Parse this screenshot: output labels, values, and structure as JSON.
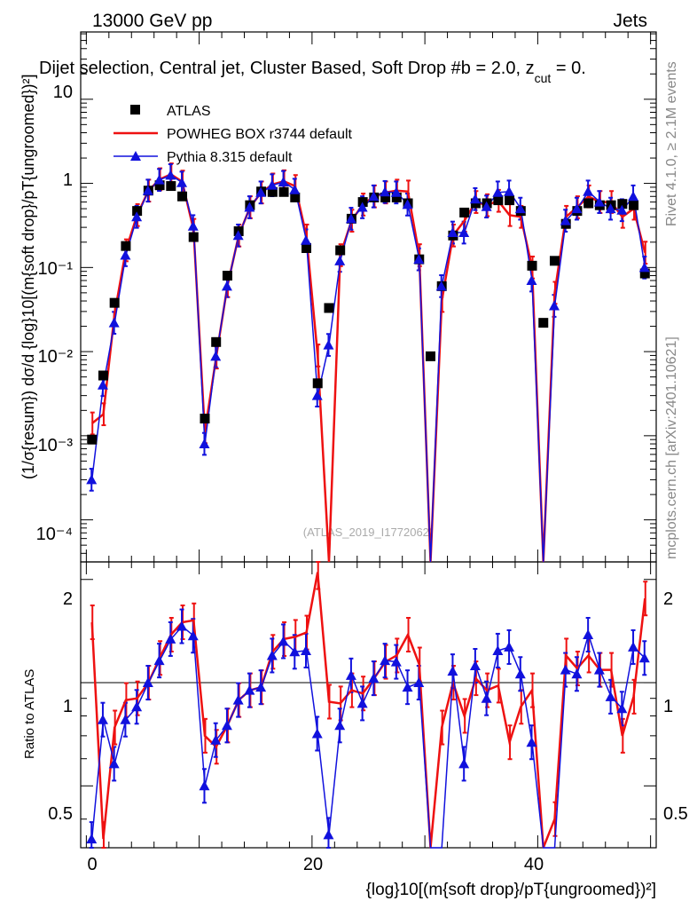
{
  "header": {
    "energy": "13000 GeV pp",
    "process": "Jets",
    "selection": "Dijet selection, Central jet, Cluster Based, Soft Drop #b = 2.0, z",
    "selection_sub": "cut",
    "selection_tail": " = 0.",
    "watermark": "(ATLAS_2019_I1772062)",
    "side_rivet": "Rivet 4.1.0, ≥ 2.1M events",
    "side_mcplots": "mcplots.cern.ch [arXiv:2401.10621]"
  },
  "legend": {
    "atlas": "ATLAS",
    "powheg": "POWHEG BOX r3744 default",
    "pythia": "Pythia 8.315 default"
  },
  "axes": {
    "main_ylabel": "(1/σ{resum}) dσ/d {log}10[(m{soft drop}/pT{ungroomed})²]",
    "ratio_ylabel": "Ratio to ATLAS",
    "xlabel": "{log}10[(m{soft drop}/pT{ungroomed})²]",
    "x_ticks": [
      "0",
      "20",
      "40"
    ],
    "main_y_ticks": [
      "10",
      "1",
      "10⁻¹",
      "10⁻²",
      "10⁻³",
      "10⁻⁴"
    ],
    "ratio_y_ticks": [
      "2",
      "1",
      "0.5"
    ]
  },
  "colors": {
    "powheg": "#ee1111",
    "pythia": "#1111dd",
    "data": "#000000"
  },
  "chart_data": {
    "type": "line",
    "xlim": [
      -0.5,
      50.5
    ],
    "main_ylim_log10": [
      -4.5,
      1.8
    ],
    "ratio_ylim": [
      0.33,
      2.25
    ],
    "bin_centers": [
      0.5,
      1.5,
      2.5,
      3.5,
      4.5,
      5.5,
      6.5,
      7.5,
      8.5,
      9.5,
      10.5,
      11.5,
      12.5,
      13.5,
      14.5,
      15.5,
      16.5,
      17.5,
      18.5,
      19.5,
      20.5,
      21.5,
      22.5,
      23.5,
      24.5,
      25.5,
      26.5,
      27.5,
      28.5,
      29.5,
      30.5,
      31.5,
      32.5,
      33.5,
      34.5,
      35.5,
      36.5,
      37.5,
      38.5,
      39.5,
      40.5,
      41.5,
      42.5,
      43.5,
      44.5,
      45.5,
      46.5,
      47.5,
      48.5,
      49.5
    ],
    "series": [
      {
        "name": "ATLAS",
        "values": [
          0.0009,
          0.0052,
          0.038,
          0.18,
          0.47,
          0.82,
          0.95,
          0.93,
          0.7,
          0.23,
          0.0016,
          0.013,
          0.08,
          0.27,
          0.55,
          0.8,
          0.79,
          0.79,
          0.68,
          0.17,
          0.0042,
          0.033,
          0.16,
          0.38,
          0.6,
          0.68,
          0.68,
          0.68,
          0.58,
          0.125,
          0.0088,
          0.06,
          0.24,
          0.45,
          0.58,
          0.58,
          0.63,
          0.63,
          0.47,
          0.105,
          0.022,
          0.12,
          0.33,
          0.47,
          0.58,
          0.55,
          0.55,
          0.57,
          0.55,
          0.085
        ]
      },
      {
        "name": "POWHEG BOX r3744 default",
        "values": [
          0.0014,
          0.0018,
          0.028,
          0.16,
          0.42,
          0.82,
          1.12,
          1.28,
          1.05,
          0.28,
          0.0011,
          0.0085,
          0.06,
          0.24,
          0.52,
          0.78,
          0.97,
          1.06,
          0.93,
          0.24,
          0.009,
          0.0,
          0.14,
          0.36,
          0.56,
          0.7,
          0.78,
          0.82,
          0.8,
          0.14,
          0.0,
          0.04,
          0.24,
          0.36,
          0.6,
          0.55,
          0.62,
          0.42,
          0.4,
          0.1,
          0.0,
          0.05,
          0.4,
          0.52,
          0.7,
          0.6,
          0.6,
          0.4,
          0.5,
          0.15
        ]
      },
      {
        "name": "Pythia 8.315 default",
        "values": [
          0.0003,
          0.004,
          0.022,
          0.14,
          0.4,
          0.82,
          1.1,
          1.25,
          1.02,
          0.31,
          0.0008,
          0.0088,
          0.06,
          0.24,
          0.52,
          0.78,
          0.95,
          1.04,
          0.84,
          0.21,
          0.003,
          0.012,
          0.12,
          0.38,
          0.52,
          0.7,
          0.79,
          0.78,
          0.56,
          0.125,
          0.0,
          0.06,
          0.26,
          0.26,
          0.65,
          0.53,
          0.78,
          0.8,
          0.5,
          0.07,
          0.0,
          0.035,
          0.36,
          0.5,
          0.8,
          0.6,
          0.5,
          0.48,
          0.7,
          0.1
        ]
      }
    ],
    "ratio_series": [
      {
        "name": "POWHEG BOX r3744 default",
        "values": [
          1.5,
          0.35,
          0.74,
          0.89,
          0.9,
          1.0,
          1.18,
          1.38,
          1.5,
          1.52,
          0.7,
          0.65,
          0.75,
          0.89,
          0.95,
          0.97,
          1.23,
          1.34,
          1.36,
          1.4,
          2.1,
          0.88,
          0.87,
          0.95,
          0.93,
          1.03,
          1.15,
          1.2,
          1.38,
          1.13,
          0.0,
          0.74,
          1.0,
          0.8,
          1.03,
          0.95,
          0.98,
          0.67,
          0.85,
          0.95,
          0.0,
          0.4,
          1.2,
          1.1,
          1.2,
          1.09,
          1.09,
          0.7,
          0.91,
          1.76
        ]
      },
      {
        "name": "Pythia 8.315 default",
        "values": [
          0.35,
          0.78,
          0.58,
          0.78,
          0.85,
          1.0,
          1.16,
          1.34,
          1.46,
          1.37,
          0.5,
          0.68,
          0.75,
          0.89,
          0.95,
          0.97,
          1.2,
          1.32,
          1.23,
          1.24,
          0.71,
          0.36,
          0.75,
          1.05,
          0.87,
          1.03,
          1.16,
          1.15,
          0.97,
          1.0,
          0.0,
          0.0,
          1.08,
          0.58,
          1.12,
          0.9,
          1.24,
          1.27,
          1.06,
          0.67,
          0.0,
          0.0,
          1.09,
          1.06,
          1.38,
          1.09,
          0.91,
          0.84,
          1.27,
          1.18
        ]
      }
    ]
  }
}
